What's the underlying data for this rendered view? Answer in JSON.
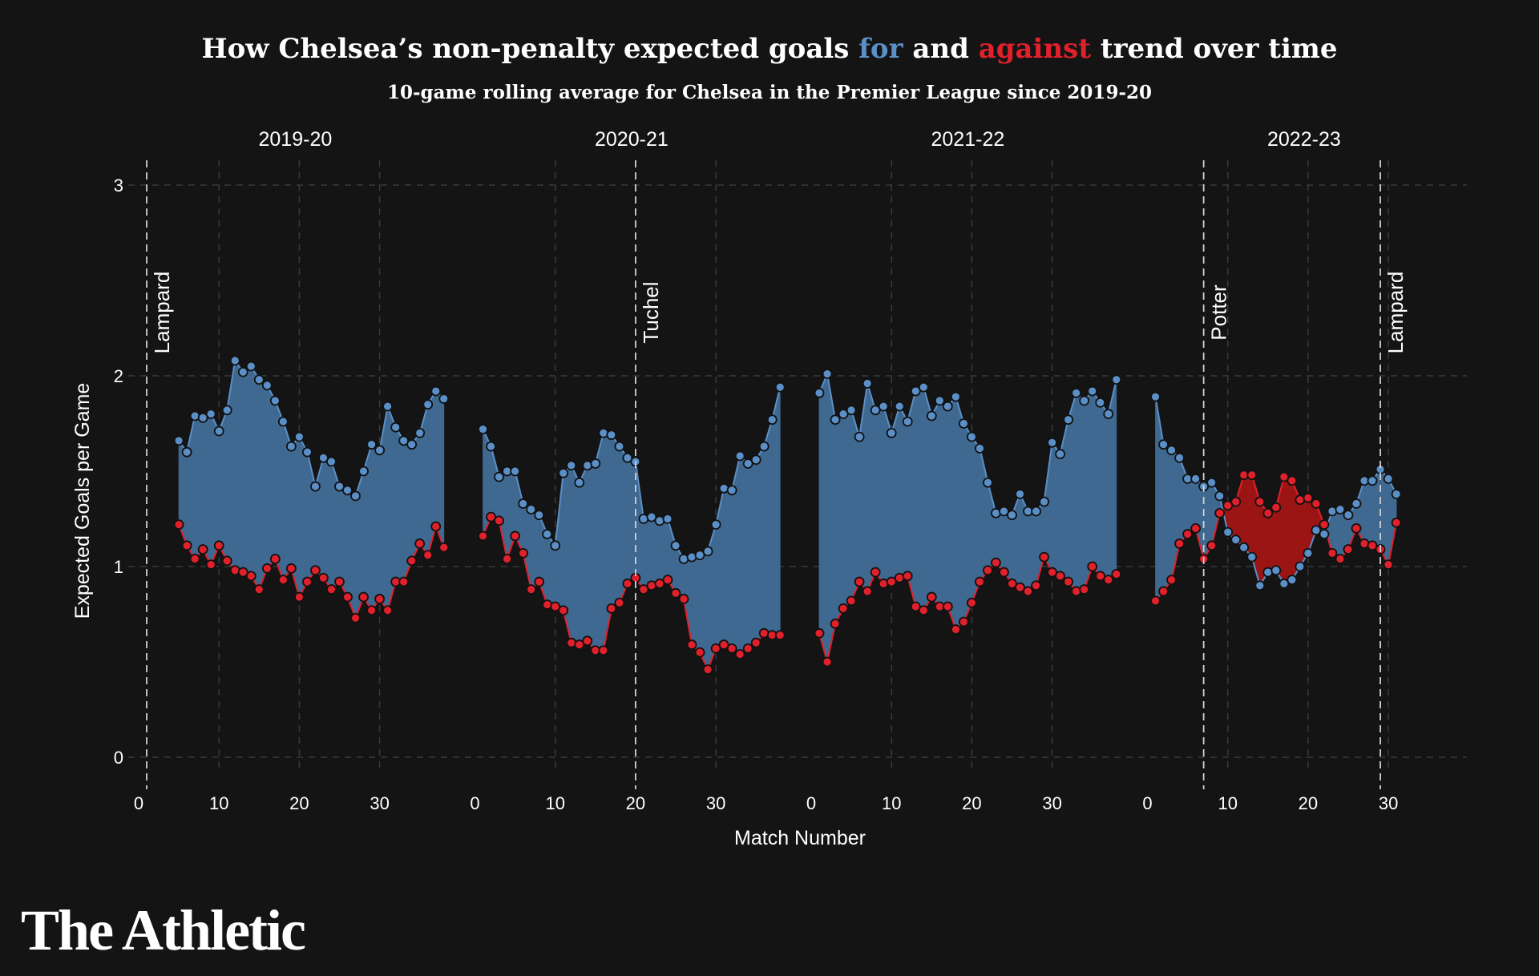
{
  "header": {
    "title_part1": "How Chelsea’s non-penalty expected goals ",
    "title_for": "for",
    "title_and": " and ",
    "title_against": "against",
    "title_part2": " trend over time",
    "subtitle": "10-game rolling average for Chelsea in the Premier League since 2019-20"
  },
  "brand": {
    "logo_text": "The Athletic"
  },
  "colors": {
    "background": "#141414",
    "for": "#5b8fc7",
    "for_fill": "#3f6990",
    "against": "#e0202a",
    "against_fill": "#9b1515"
  },
  "chart_data": {
    "type": "area",
    "ylabel": "Expected Goals per Game",
    "xlabel": "Match Number",
    "ylim": [
      0,
      3
    ],
    "yticks": [
      0,
      1,
      2,
      3
    ],
    "xticks": [
      0,
      10,
      20,
      30
    ],
    "grid": true,
    "panels": [
      {
        "label": "2019-20",
        "x_start": 5,
        "xg_for": [
          1.66,
          1.6,
          1.79,
          1.78,
          1.8,
          1.71,
          1.82,
          2.08,
          2.02,
          2.05,
          1.98,
          1.95,
          1.87,
          1.76,
          1.63,
          1.68,
          1.6,
          1.42,
          1.57,
          1.55,
          1.42,
          1.4,
          1.37,
          1.5,
          1.64,
          1.61,
          1.84,
          1.73,
          1.66,
          1.64,
          1.7,
          1.85,
          1.92,
          1.88
        ],
        "xg_against": [
          1.22,
          1.11,
          1.04,
          1.09,
          1.01,
          1.11,
          1.03,
          0.98,
          0.97,
          0.95,
          0.88,
          0.99,
          1.04,
          0.93,
          0.99,
          0.84,
          0.92,
          0.98,
          0.94,
          0.88,
          0.92,
          0.84,
          0.73,
          0.84,
          0.77,
          0.83,
          0.77,
          0.92,
          0.92,
          1.03,
          1.12,
          1.06,
          1.21,
          1.1
        ],
        "managers": [
          {
            "name": "Lampard",
            "match": 1
          }
        ]
      },
      {
        "label": "2020-21",
        "x_start": 1,
        "xg_for": [
          1.72,
          1.63,
          1.47,
          1.5,
          1.5,
          1.33,
          1.3,
          1.27,
          1.17,
          1.11,
          1.49,
          1.53,
          1.44,
          1.53,
          1.54,
          1.7,
          1.69,
          1.63,
          1.57,
          1.55,
          1.25,
          1.26,
          1.24,
          1.25,
          1.11,
          1.04,
          1.05,
          1.06,
          1.08,
          1.22,
          1.41,
          1.4,
          1.58,
          1.54,
          1.56,
          1.63,
          1.77,
          1.94
        ],
        "xg_against": [
          1.16,
          1.26,
          1.24,
          1.04,
          1.16,
          1.07,
          0.88,
          0.92,
          0.8,
          0.79,
          0.77,
          0.6,
          0.59,
          0.61,
          0.56,
          0.56,
          0.78,
          0.81,
          0.91,
          0.94,
          0.88,
          0.9,
          0.91,
          0.93,
          0.86,
          0.83,
          0.59,
          0.55,
          0.46,
          0.57,
          0.59,
          0.57,
          0.54,
          0.57,
          0.6,
          0.65,
          0.64,
          0.64
        ],
        "managers": [
          {
            "name": "Tuchel",
            "match": 20
          }
        ]
      },
      {
        "label": "2021-22",
        "x_start": 1,
        "xg_for": [
          1.91,
          2.01,
          1.77,
          1.8,
          1.82,
          1.68,
          1.96,
          1.82,
          1.84,
          1.7,
          1.84,
          1.76,
          1.92,
          1.94,
          1.79,
          1.87,
          1.84,
          1.89,
          1.75,
          1.68,
          1.62,
          1.44,
          1.28,
          1.29,
          1.27,
          1.38,
          1.29,
          1.29,
          1.34,
          1.65,
          1.59,
          1.77,
          1.91,
          1.87,
          1.92,
          1.86,
          1.8,
          1.98
        ],
        "xg_against": [
          0.65,
          0.5,
          0.7,
          0.78,
          0.82,
          0.92,
          0.87,
          0.97,
          0.91,
          0.92,
          0.94,
          0.95,
          0.79,
          0.77,
          0.84,
          0.79,
          0.79,
          0.67,
          0.71,
          0.81,
          0.92,
          0.98,
          1.02,
          0.97,
          0.91,
          0.89,
          0.87,
          0.9,
          1.05,
          0.97,
          0.95,
          0.92,
          0.87,
          0.88,
          1.0,
          0.95,
          0.93,
          0.96
        ],
        "managers": []
      },
      {
        "label": "2022-23",
        "x_start": 1,
        "xg_for": [
          1.89,
          1.64,
          1.61,
          1.57,
          1.46,
          1.46,
          1.42,
          1.44,
          1.37,
          1.18,
          1.14,
          1.1,
          1.05,
          0.9,
          0.97,
          0.98,
          0.91,
          0.93,
          1.0,
          1.07,
          1.19,
          1.17,
          1.29,
          1.3,
          1.27,
          1.33,
          1.45,
          1.45,
          1.51,
          1.46,
          1.38
        ],
        "xg_against": [
          0.82,
          0.87,
          0.93,
          1.12,
          1.17,
          1.2,
          1.04,
          1.11,
          1.28,
          1.32,
          1.34,
          1.48,
          1.48,
          1.34,
          1.28,
          1.31,
          1.47,
          1.45,
          1.35,
          1.36,
          1.33,
          1.22,
          1.07,
          1.04,
          1.09,
          1.2,
          1.12,
          1.11,
          1.09,
          1.01,
          1.23
        ],
        "managers": [
          {
            "name": "Potter",
            "match": 7
          },
          {
            "name": "Lampard",
            "match": 29
          }
        ]
      }
    ]
  }
}
